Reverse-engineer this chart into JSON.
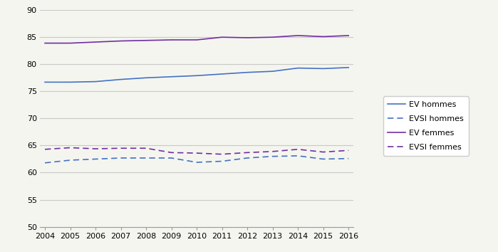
{
  "years": [
    2004,
    2005,
    2006,
    2007,
    2008,
    2009,
    2010,
    2011,
    2012,
    2013,
    2014,
    2015,
    2016
  ],
  "EV_hommes": [
    76.7,
    76.7,
    76.8,
    77.2,
    77.5,
    77.7,
    77.9,
    78.2,
    78.5,
    78.7,
    79.3,
    79.2,
    79.4
  ],
  "EVSI_hommes": [
    61.8,
    62.3,
    62.5,
    62.7,
    62.7,
    62.7,
    61.9,
    62.1,
    62.7,
    63.0,
    63.1,
    62.5,
    62.6
  ],
  "EV_femmes": [
    83.9,
    83.9,
    84.1,
    84.3,
    84.4,
    84.5,
    84.5,
    85.0,
    84.9,
    85.0,
    85.3,
    85.1,
    85.3
  ],
  "EVSI_femmes": [
    64.3,
    64.6,
    64.4,
    64.5,
    64.5,
    63.7,
    63.6,
    63.4,
    63.7,
    63.9,
    64.3,
    63.8,
    64.1
  ],
  "ylim": [
    50,
    90
  ],
  "yticks": [
    50,
    55,
    60,
    65,
    70,
    75,
    80,
    85,
    90
  ],
  "xlim": [
    2004,
    2016
  ],
  "color_ev_hommes": "#4472c4",
  "color_evsi_hommes": "#4472c4",
  "color_ev_femmes": "#7030a0",
  "color_evsi_femmes": "#7030a0",
  "legend_labels": [
    "EV hommes",
    "EVSI hommes",
    "EV femmes",
    "EVSI femmes"
  ],
  "legend_fontsize": 8,
  "tick_fontsize": 8,
  "linewidth": 1.2,
  "bg_color": "#f5f5f0",
  "grid_color": "#c8c8c8"
}
